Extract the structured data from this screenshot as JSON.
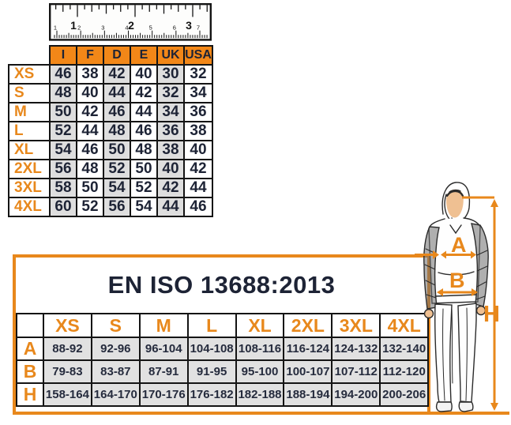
{
  "colors": {
    "accent": "#e8881c",
    "header_bg": "#f28718",
    "cell_shade": "#dedede",
    "text_dark": "#1d2335"
  },
  "ruler": {
    "inch_labels": [
      "1",
      "2",
      "3"
    ],
    "cm_labels": [
      "1",
      "2",
      "3",
      "4",
      "5",
      "6",
      "7"
    ]
  },
  "chart_data": [
    {
      "type": "table",
      "name": "size_conversion_table",
      "columns": [
        "I",
        "F",
        "D",
        "E",
        "UK",
        "USA"
      ],
      "rows": [
        {
          "size": "XS",
          "values": [
            "46",
            "38",
            "42",
            "40",
            "30",
            "32"
          ]
        },
        {
          "size": "S",
          "values": [
            "48",
            "40",
            "44",
            "42",
            "32",
            "34"
          ]
        },
        {
          "size": "M",
          "values": [
            "50",
            "42",
            "46",
            "44",
            "34",
            "36"
          ]
        },
        {
          "size": "L",
          "values": [
            "52",
            "44",
            "48",
            "46",
            "36",
            "38"
          ]
        },
        {
          "size": "XL",
          "values": [
            "54",
            "46",
            "50",
            "48",
            "38",
            "40"
          ]
        },
        {
          "size": "2XL",
          "values": [
            "56",
            "48",
            "52",
            "50",
            "40",
            "42"
          ]
        },
        {
          "size": "3XL",
          "values": [
            "58",
            "50",
            "54",
            "52",
            "42",
            "44"
          ]
        },
        {
          "size": "4XL",
          "values": [
            "60",
            "52",
            "56",
            "54",
            "44",
            "46"
          ]
        }
      ]
    },
    {
      "type": "table",
      "name": "iso_measurement_table",
      "title": "EN ISO 13688:2013",
      "columns": [
        "XS",
        "S",
        "M",
        "L",
        "XL",
        "2XL",
        "3XL",
        "4XL"
      ],
      "rows": [
        {
          "label": "A",
          "values": [
            "88-92",
            "92-96",
            "96-104",
            "104-108",
            "108-116",
            "116-124",
            "124-132",
            "132-140"
          ]
        },
        {
          "label": "B",
          "values": [
            "79-83",
            "83-87",
            "87-91",
            "91-95",
            "95-100",
            "100-107",
            "107-112",
            "112-120"
          ]
        },
        {
          "label": "H",
          "values": [
            "158-164",
            "164-170",
            "170-176",
            "176-182",
            "182-188",
            "188-194",
            "194-200",
            "200-206"
          ]
        }
      ]
    }
  ],
  "figure": {
    "labels": {
      "chest": "A",
      "waist": "B",
      "height": "H"
    }
  }
}
